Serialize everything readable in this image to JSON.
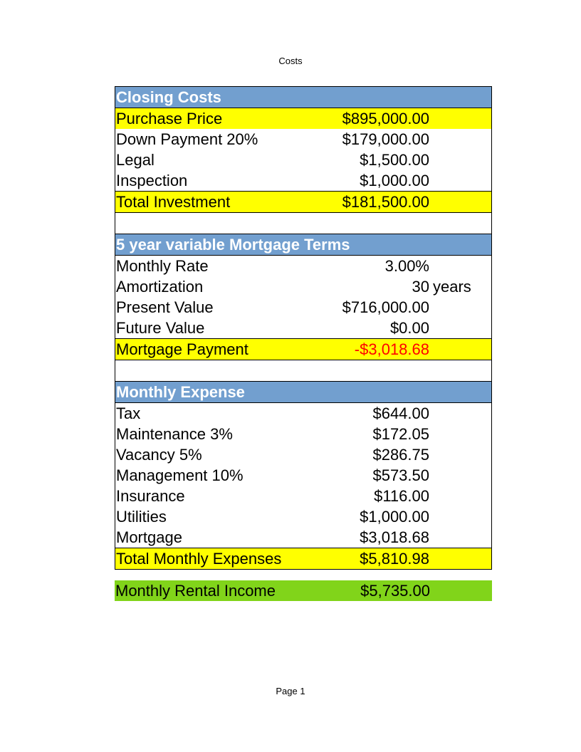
{
  "header": "Costs",
  "footer": "Page 1",
  "closing_costs": {
    "title": "Closing Costs",
    "purchase_price": {
      "label": "Purchase Price",
      "value": "$895,000.00"
    },
    "down_payment": {
      "label": "Down Payment 20%",
      "value": "$179,000.00"
    },
    "legal": {
      "label": "Legal",
      "value": "$1,500.00"
    },
    "inspection": {
      "label": "Inspection",
      "value": "$1,000.00"
    },
    "total": {
      "label": "Total Investment",
      "value": "$181,500.00"
    }
  },
  "mortgage_terms": {
    "title": "5 year variable Mortgage Terms",
    "monthly_rate": {
      "label": "Monthly Rate",
      "value": "3.00%"
    },
    "amortization": {
      "label": "Amortization",
      "value": "30",
      "unit": "years"
    },
    "present_value": {
      "label": "Present Value",
      "value": "$716,000.00"
    },
    "future_value": {
      "label": "Future Value",
      "value": "$0.00"
    },
    "payment": {
      "label": "Mortgage Payment",
      "value": "-$3,018.68"
    }
  },
  "monthly_expense": {
    "title": "Monthly Expense",
    "tax": {
      "label": "Tax",
      "value": "$644.00"
    },
    "maintenance": {
      "label": "Maintenance 3%",
      "value": "$172.05"
    },
    "vacancy": {
      "label": "Vacancy 5%",
      "value": "$286.75"
    },
    "management": {
      "label": "Management 10%",
      "value": "$573.50"
    },
    "insurance": {
      "label": "Insurance",
      "value": "$116.00"
    },
    "utilities": {
      "label": "Utilities",
      "value": "$1,000.00"
    },
    "mortgage": {
      "label": "Mortgage",
      "value": "$3,018.68"
    },
    "total": {
      "label": "Total Monthly Expenses",
      "value": "$5,810.98"
    }
  },
  "rental_income": {
    "label": "Monthly Rental Income",
    "value": "$5,735.00"
  },
  "colors": {
    "header_fill": "#729fcf",
    "highlight_fill": "#ffff00",
    "income_fill": "#81d41a",
    "negative_text": "#ff0000"
  }
}
